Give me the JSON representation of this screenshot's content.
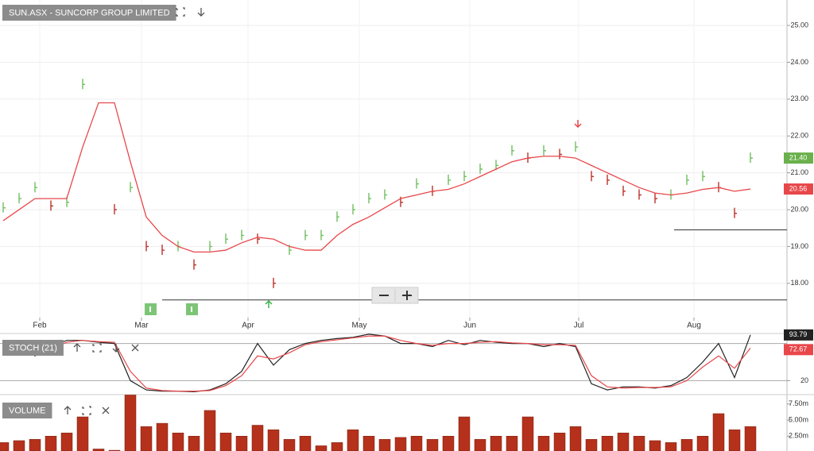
{
  "chart_data": [
    {
      "type": "price",
      "title": "SUN.ASX - SUNCORP GROUP LIMITED",
      "xlim": [
        -0.2,
        49.3
      ],
      "xticks": [
        {
          "value": 2.3,
          "label": "Feb"
        },
        {
          "value": 8.7,
          "label": "Mar"
        },
        {
          "value": 15.4,
          "label": "Apr"
        },
        {
          "value": 22.4,
          "label": "May"
        },
        {
          "value": 29.35,
          "label": "Jun"
        },
        {
          "value": 36.2,
          "label": "Jul"
        },
        {
          "value": 43.45,
          "label": "Aug"
        }
      ],
      "ylim": [
        17.07,
        25.69
      ],
      "yticks": [
        {
          "value": 18,
          "label": "18.00"
        },
        {
          "value": 19,
          "label": "19.00"
        },
        {
          "value": 20,
          "label": "20.00"
        },
        {
          "value": 21,
          "label": "21.00"
        },
        {
          "value": 22,
          "label": "22.00"
        },
        {
          "value": 23,
          "label": "23.00"
        },
        {
          "value": 24,
          "label": "24.00"
        },
        {
          "value": 25,
          "label": "25.00"
        }
      ],
      "grid": true,
      "up_color": "#6fbf5f",
      "down_color": "#b8322a",
      "series": [
        {
          "color": "#6ab04c",
          "last_label": "21.40",
          "values": [
            20.05,
            20.3,
            20.6,
            20.1,
            20.2,
            23.4,
            null,
            20.0,
            20.6,
            19.0,
            18.9,
            19.0,
            18.5,
            19.0,
            19.2,
            19.3,
            19.2,
            18.0,
            18.9,
            19.3,
            19.3,
            19.8,
            20.0,
            20.3,
            20.4,
            20.2,
            20.7,
            20.5,
            20.8,
            20.9,
            21.1,
            21.2,
            21.6,
            21.4,
            21.6,
            21.5,
            21.7,
            20.9,
            20.8,
            20.5,
            20.4,
            20.3,
            20.4,
            20.8,
            20.9,
            20.6,
            19.9,
            21.4
          ]
        },
        {
          "color": "#e8474a",
          "last_label": "20.56",
          "values": [
            19.7,
            20.0,
            20.3,
            20.3,
            20.3,
            21.7,
            22.9,
            22.9,
            21.3,
            19.8,
            19.3,
            19.0,
            18.85,
            18.85,
            18.9,
            19.1,
            19.25,
            19.2,
            19.0,
            18.9,
            18.9,
            19.3,
            19.6,
            19.8,
            20.05,
            20.3,
            20.4,
            20.5,
            20.55,
            20.7,
            20.9,
            21.1,
            21.3,
            21.4,
            21.45,
            21.45,
            21.4,
            21.2,
            21.0,
            20.8,
            20.6,
            20.45,
            20.4,
            20.45,
            20.55,
            20.6,
            20.5,
            20.56
          ]
        }
      ],
      "support_lines": [
        {
          "from": 10,
          "value": 17.55
        },
        {
          "from": 42.2,
          "value": 19.45
        }
      ]
    },
    {
      "type": "line",
      "title": "STOCH (21)",
      "ylim": [
        0,
        100
      ],
      "yticks": [
        20
      ],
      "levels": [
        20,
        80
      ],
      "series": [
        {
          "color": "#222222",
          "last_label": "93.79",
          "values": [
            75,
            85,
            60,
            75,
            85,
            85,
            82,
            80,
            20,
            5,
            3,
            3,
            2,
            5,
            15,
            35,
            80,
            45,
            70,
            80,
            85,
            88,
            90,
            95,
            92,
            80,
            80,
            75,
            85,
            78,
            85,
            82,
            80,
            80,
            75,
            80,
            75,
            15,
            5,
            10,
            10,
            8,
            12,
            25,
            50,
            80,
            25,
            93.79
          ]
        },
        {
          "color": "#e8474a",
          "last_label": "72.67",
          "values": [
            70,
            80,
            70,
            72,
            82,
            85,
            83,
            82,
            35,
            8,
            4,
            3,
            3,
            4,
            12,
            28,
            60,
            55,
            65,
            78,
            83,
            86,
            89,
            92,
            92,
            85,
            80,
            77,
            80,
            80,
            82,
            83,
            81,
            80,
            78,
            78,
            77,
            28,
            10,
            8,
            9,
            9,
            10,
            20,
            42,
            60,
            40,
            72.67
          ]
        }
      ]
    },
    {
      "type": "bar",
      "title": "VOLUME",
      "color": "#b5311b",
      "ylim": [
        0,
        8.96
      ],
      "yticks": [
        {
          "value": 2.5,
          "label": "2.50m"
        },
        {
          "value": 5,
          "label": "5.00m"
        },
        {
          "value": 7.5,
          "label": "7.50m"
        }
      ],
      "values": [
        1.5,
        1.8,
        2.0,
        2.5,
        3.0,
        5.5,
        0.5,
        0.3,
        8.9,
        4.0,
        4.5,
        3.0,
        2.5,
        6.5,
        3.0,
        2.5,
        4.2,
        3.5,
        2.0,
        2.5,
        1.0,
        1.5,
        3.5,
        2.5,
        2.0,
        2.3,
        2.5,
        2.0,
        2.5,
        5.5,
        2.0,
        2.5,
        2.5,
        5.5,
        2.5,
        3.0,
        4.0,
        2.0,
        2.5,
        3.0,
        2.5,
        1.8,
        1.5,
        2.0,
        2.5,
        6.0,
        3.5,
        4.0
      ]
    }
  ]
}
